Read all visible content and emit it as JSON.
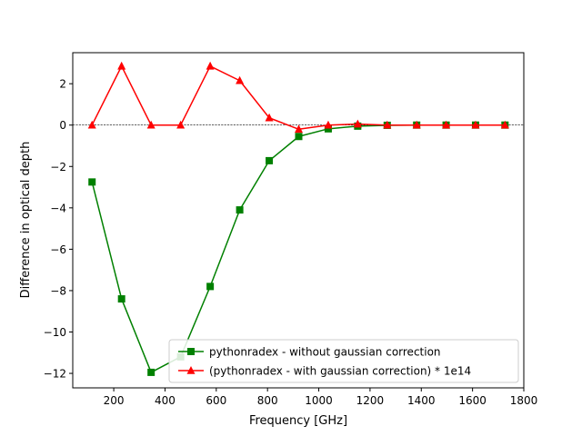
{
  "chart_data": {
    "type": "line",
    "title": "",
    "xlabel": "Frequency [GHz]",
    "ylabel": "Difference in optical depth",
    "xlim": [
      40,
      1800
    ],
    "ylim": [
      -12.7,
      3.5
    ],
    "xticks": [
      200,
      400,
      600,
      800,
      1000,
      1200,
      1400,
      1600,
      1800
    ],
    "yticks": [
      -12,
      -10,
      -8,
      -6,
      -4,
      -2,
      0,
      2
    ],
    "ytick_labels": [
      "−12",
      "−10",
      "−8",
      "−6",
      "−4",
      "−2",
      "0",
      "2"
    ],
    "reference_line": {
      "y": 0,
      "color": "#000000",
      "style": "dashed"
    },
    "legend_position": "lower-right",
    "x": [
      115.3,
      230.5,
      345.8,
      461.0,
      576.3,
      691.5,
      806.7,
      921.8,
      1036.9,
      1151.9,
      1267.0,
      1382.0,
      1496.9,
      1611.8,
      1726.6
    ],
    "series": [
      {
        "name": "pythonradex - without gaussian correction",
        "color": "#008000",
        "marker": "square",
        "values": [
          -2.75,
          -8.4,
          -11.95,
          -11.2,
          -7.8,
          -4.1,
          -1.72,
          -0.55,
          -0.18,
          -0.05,
          -0.01,
          0.0,
          0.0,
          0.0,
          0.0
        ]
      },
      {
        "name": "(pythonradex - with gaussian correction) * 1e14",
        "color": "#ff0000",
        "marker": "triangle",
        "values": [
          0.0,
          2.85,
          0.0,
          0.0,
          2.85,
          2.15,
          0.35,
          -0.2,
          0.0,
          0.05,
          0.0,
          0.0,
          0.0,
          0.0,
          0.0
        ]
      }
    ]
  }
}
